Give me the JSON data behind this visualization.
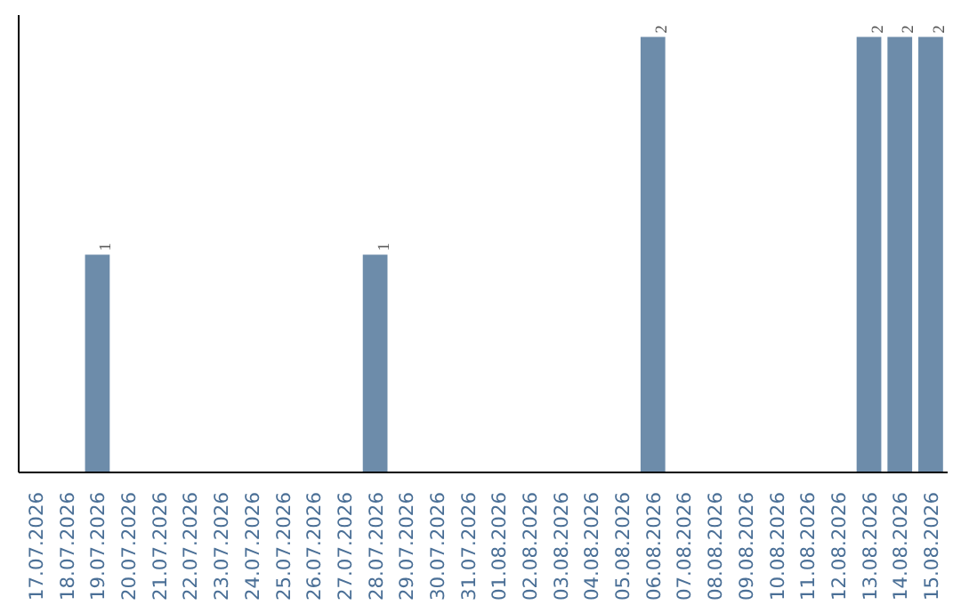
{
  "chart_data": {
    "type": "bar",
    "categories": [
      "17.07.2026",
      "18.07.2026",
      "19.07.2026",
      "20.07.2026",
      "21.07.2026",
      "22.07.2026",
      "23.07.2026",
      "24.07.2026",
      "25.07.2026",
      "26.07.2026",
      "27.07.2026",
      "28.07.2026",
      "29.07.2026",
      "30.07.2026",
      "31.07.2026",
      "01.08.2026",
      "02.08.2026",
      "03.08.2026",
      "04.08.2026",
      "05.08.2026",
      "06.08.2026",
      "07.08.2026",
      "08.08.2026",
      "09.08.2026",
      "10.08.2026",
      "11.08.2026",
      "12.08.2026",
      "13.08.2026",
      "14.08.2026",
      "15.08.2026"
    ],
    "values": [
      0,
      0,
      1,
      0,
      0,
      0,
      0,
      0,
      0,
      0,
      0,
      1,
      0,
      0,
      0,
      0,
      0,
      0,
      0,
      0,
      2,
      0,
      0,
      0,
      0,
      0,
      0,
      2,
      2,
      2
    ],
    "value_labels": [
      null,
      null,
      "1",
      null,
      null,
      null,
      null,
      null,
      null,
      null,
      null,
      "1",
      null,
      null,
      null,
      null,
      null,
      null,
      null,
      null,
      "2",
      null,
      null,
      null,
      null,
      null,
      null,
      "2",
      "2",
      "2"
    ],
    "color": "#6d8caa"
  }
}
